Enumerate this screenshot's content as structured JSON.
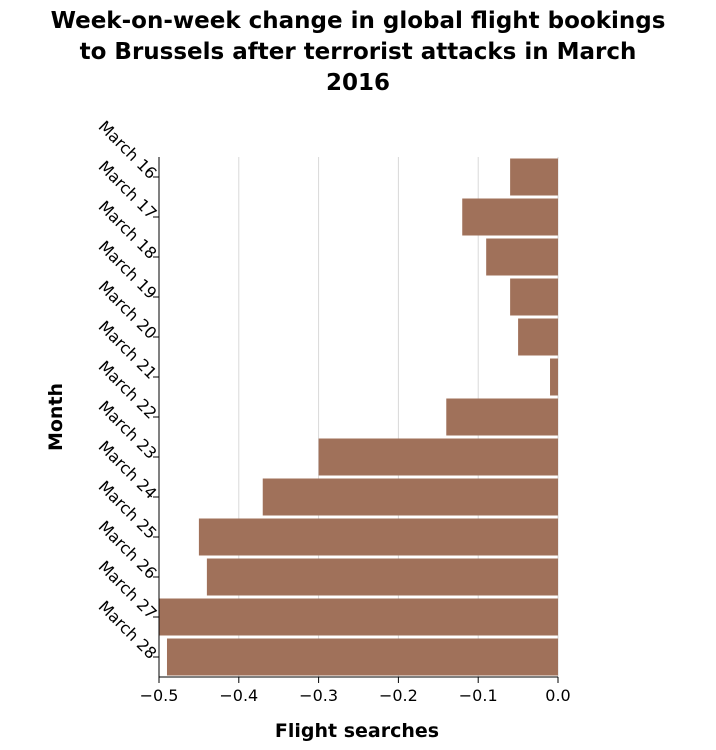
{
  "chart_data": {
    "type": "bar",
    "orientation": "horizontal",
    "title_lines": [
      "Week-on-week change in global flight bookings",
      "to Brussels after terrorist attacks in March",
      "2016"
    ],
    "xlabel": "Flight searches",
    "ylabel": "Month",
    "categories": [
      "March 16",
      "March 17",
      "March 18",
      "March 19",
      "March 20",
      "March 21",
      "March 22",
      "March 23",
      "March 24",
      "March 25",
      "March 26",
      "March 27",
      "March 28"
    ],
    "values": [
      -0.06,
      -0.12,
      -0.09,
      -0.06,
      -0.05,
      -0.01,
      -0.14,
      -0.3,
      -0.37,
      -0.45,
      -0.44,
      -0.5,
      -0.49
    ],
    "xlim": [
      -0.5,
      0.0
    ],
    "xticks": [
      -0.5,
      -0.4,
      -0.3,
      -0.2,
      -0.1,
      0.0
    ],
    "xtick_labels": [
      "−0.5",
      "−0.4",
      "−0.3",
      "−0.2",
      "−0.1",
      "0.0"
    ],
    "grid": true,
    "bar_color": "#a0715a"
  }
}
